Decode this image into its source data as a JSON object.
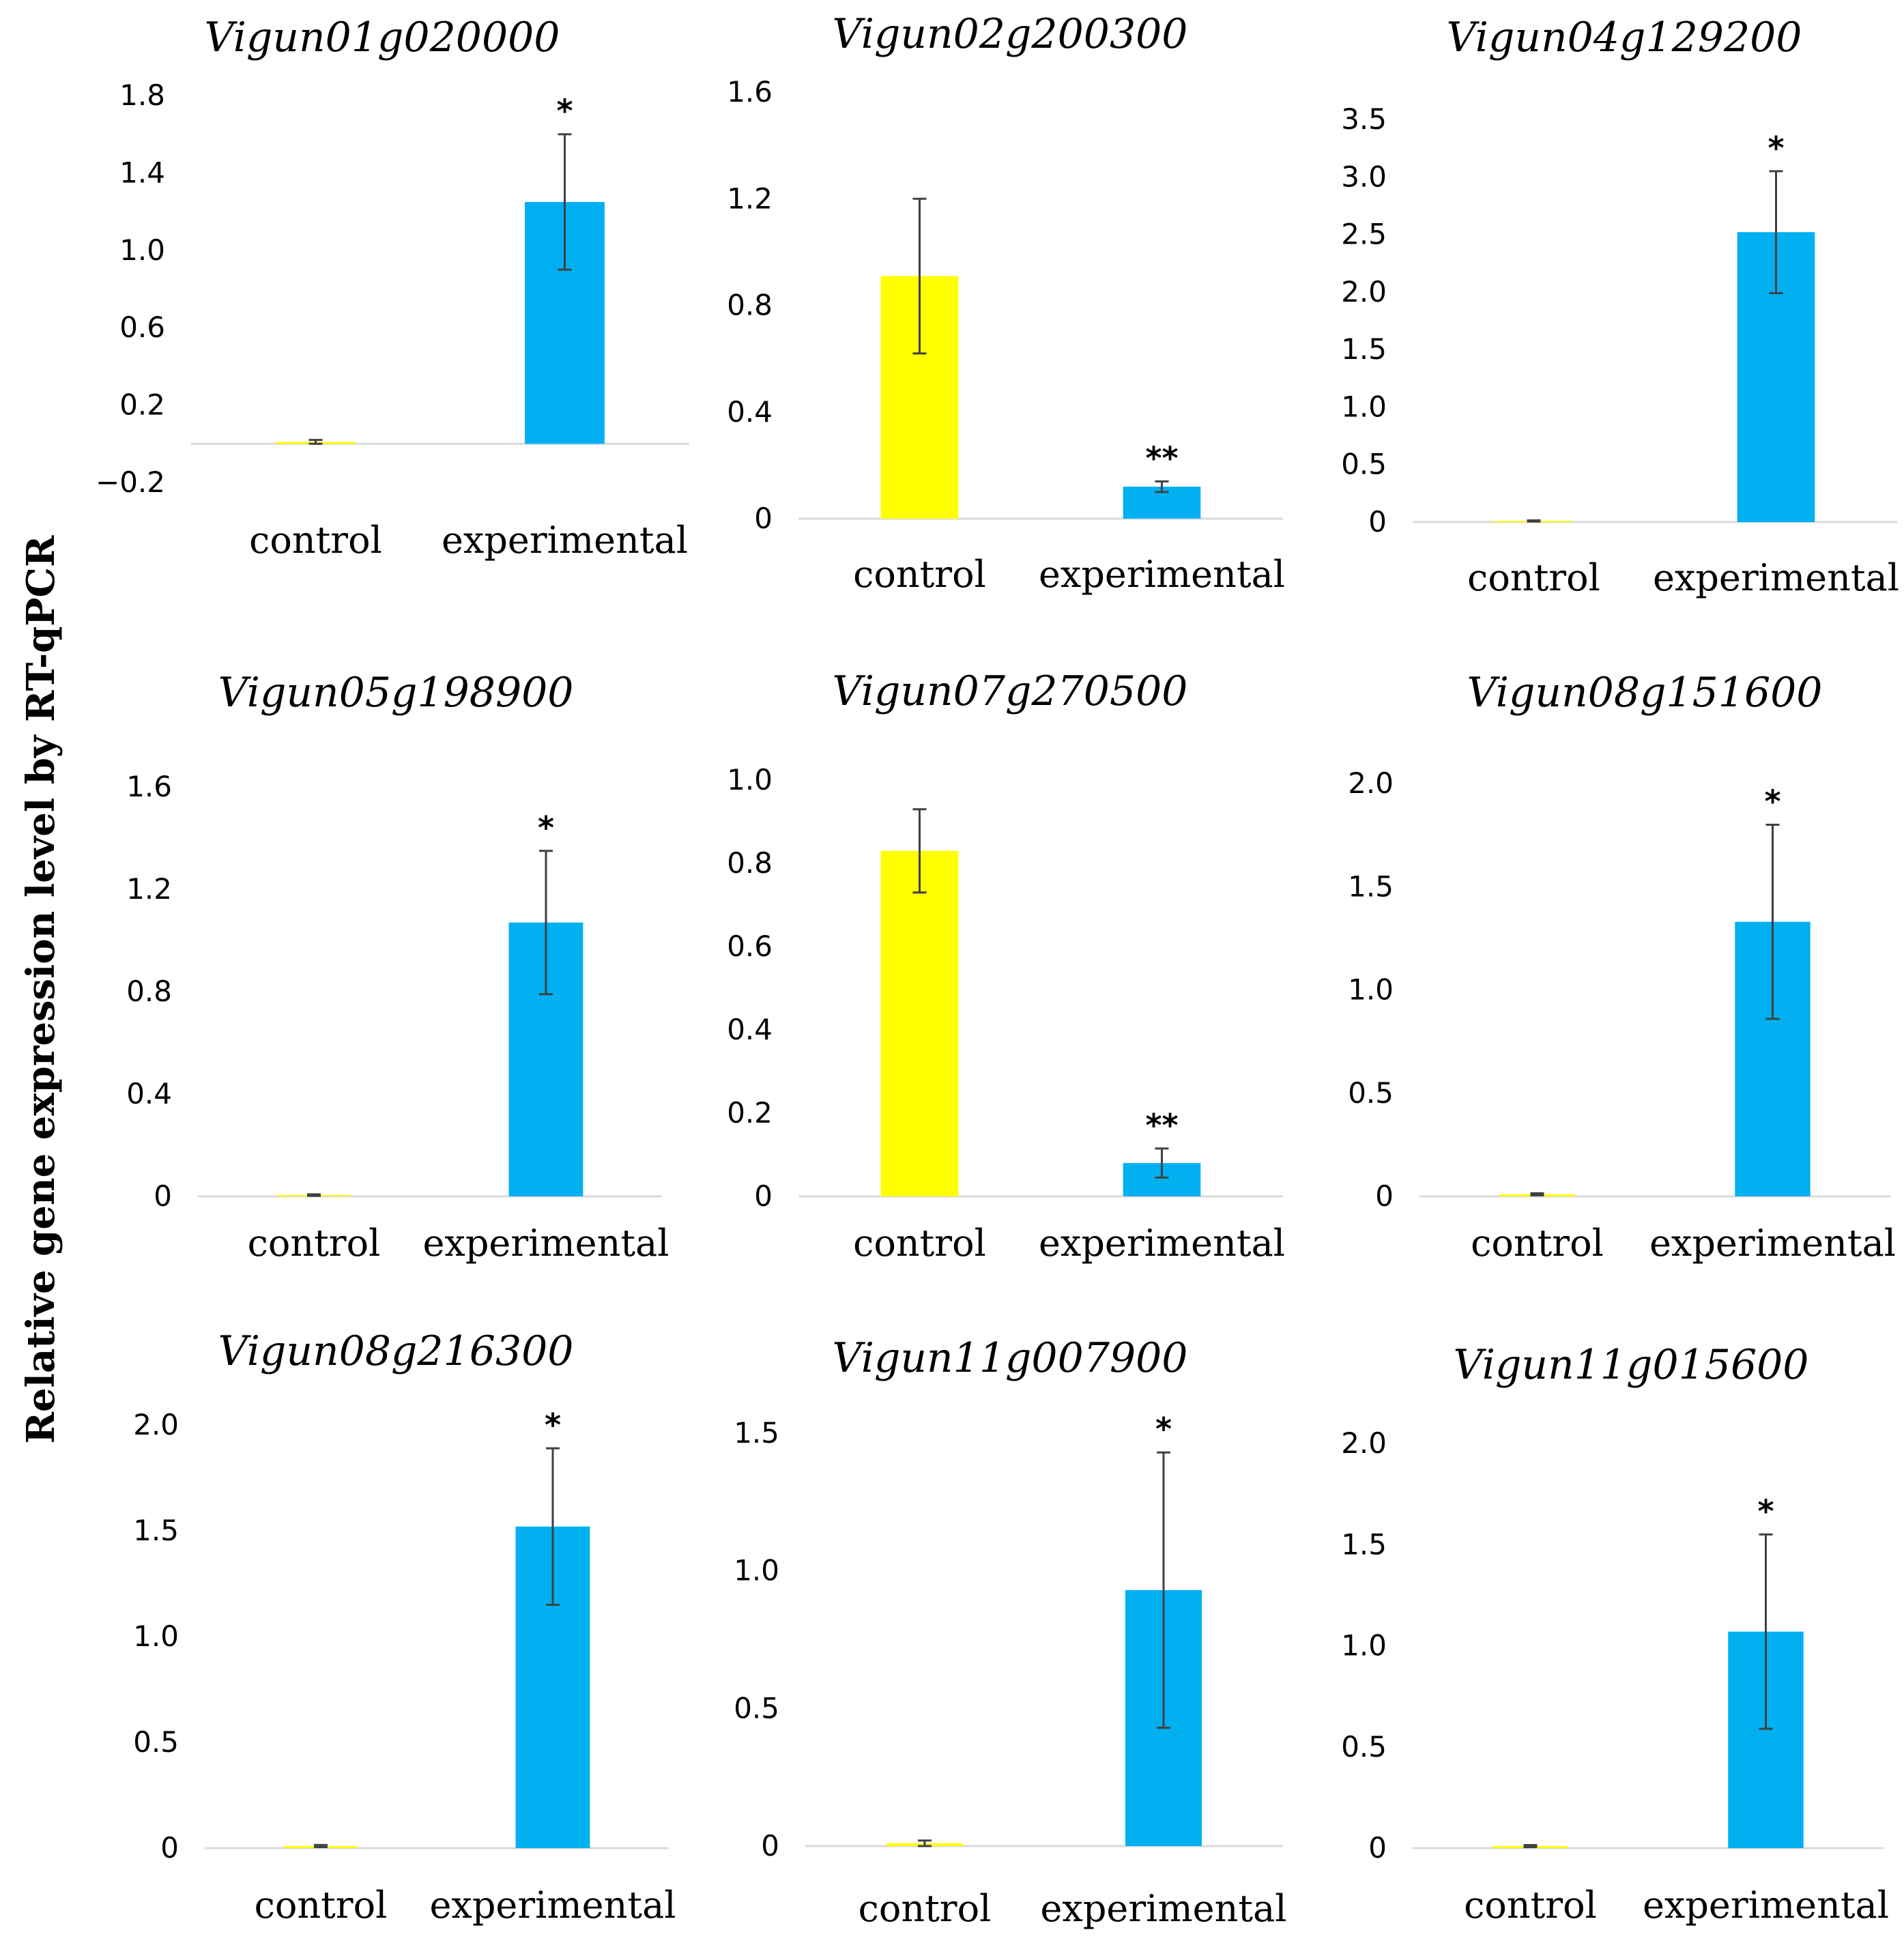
{
  "figure": {
    "ylabel": "Relative gene expression level by RT-qPCR",
    "colors": {
      "control": "#ffff00",
      "experimental": "#00b0f0",
      "axis": "#d9d9d9",
      "error": "#404040"
    }
  },
  "chart_data": [
    {
      "type": "bar",
      "title": "Vigun01g020000",
      "categories": [
        "control",
        "experimental"
      ],
      "values": [
        0.01,
        1.25
      ],
      "errors": [
        0.01,
        0.35
      ],
      "significance": [
        "",
        "*"
      ],
      "ylim": [
        -0.2,
        1.8
      ],
      "ytick_values": [
        -0.2,
        0.2,
        0.6,
        1.0,
        1.4,
        1.8
      ],
      "ytick_labels": [
        "−0.2",
        "0.2",
        "0.6",
        "1.0",
        "1.4",
        "1.8"
      ]
    },
    {
      "type": "bar",
      "title": "Vigun02g200300",
      "categories": [
        "control",
        "experimental"
      ],
      "values": [
        0.91,
        0.12
      ],
      "errors": [
        0.29,
        0.02
      ],
      "significance": [
        "",
        "**"
      ],
      "ylim": [
        0,
        1.6
      ],
      "ytick_values": [
        0,
        0.4,
        0.8,
        1.2,
        1.6
      ],
      "ytick_labels": [
        "0",
        "0.4",
        "0.8",
        "1.2",
        "1.6"
      ]
    },
    {
      "type": "bar",
      "title": "Vigun04g129200",
      "categories": [
        "control",
        "experimental"
      ],
      "values": [
        0.01,
        2.52
      ],
      "errors": [
        0.005,
        0.53
      ],
      "significance": [
        "",
        "*"
      ],
      "ylim": [
        0,
        3.5
      ],
      "ytick_values": [
        0,
        0.5,
        1.0,
        1.5,
        2.0,
        2.5,
        3.0,
        3.5
      ],
      "ytick_labels": [
        "0",
        "0.5",
        "1.0",
        "1.5",
        "2.0",
        "2.5",
        "3.0",
        "3.5"
      ]
    },
    {
      "type": "bar",
      "title": "Vigun05g198900",
      "categories": [
        "control",
        "experimental"
      ],
      "values": [
        0.005,
        1.07
      ],
      "errors": [
        0.003,
        0.28
      ],
      "significance": [
        "",
        "*"
      ],
      "ylim": [
        0,
        1.6
      ],
      "ytick_values": [
        0,
        0.4,
        0.8,
        1.2,
        1.6
      ],
      "ytick_labels": [
        "0",
        "0.4",
        "0.8",
        "1.2",
        "1.6"
      ]
    },
    {
      "type": "bar",
      "title": "Vigun07g270500",
      "categories": [
        "control",
        "experimental"
      ],
      "values": [
        0.83,
        0.08
      ],
      "errors": [
        0.1,
        0.035
      ],
      "significance": [
        "",
        "**"
      ],
      "ylim": [
        0,
        1.0
      ],
      "ytick_values": [
        0,
        0.2,
        0.4,
        0.6,
        0.8,
        1.0
      ],
      "ytick_labels": [
        "0",
        "0.2",
        "0.4",
        "0.6",
        "0.8",
        "1.0"
      ]
    },
    {
      "type": "bar",
      "title": "Vigun08g151600",
      "categories": [
        "control",
        "experimental"
      ],
      "values": [
        0.01,
        1.33
      ],
      "errors": [
        0.005,
        0.47
      ],
      "significance": [
        "",
        "*"
      ],
      "ylim": [
        0,
        2.0
      ],
      "ytick_values": [
        0,
        0.5,
        1.0,
        1.5,
        2.0
      ],
      "ytick_labels": [
        "0",
        "0.5",
        "1.0",
        "1.5",
        "2.0"
      ]
    },
    {
      "type": "bar",
      "title": "Vigun08g216300",
      "categories": [
        "control",
        "experimental"
      ],
      "values": [
        0.01,
        1.52
      ],
      "errors": [
        0.005,
        0.37
      ],
      "significance": [
        "",
        "*"
      ],
      "ylim": [
        0,
        2.0
      ],
      "ytick_values": [
        0,
        0.5,
        1.0,
        1.5,
        2.0
      ],
      "ytick_labels": [
        "0",
        "0.5",
        "1.0",
        "1.5",
        "2.0"
      ]
    },
    {
      "type": "bar",
      "title": "Vigun11g007900",
      "categories": [
        "control",
        "experimental"
      ],
      "values": [
        0.01,
        0.93
      ],
      "errors": [
        0.01,
        0.5
      ],
      "significance": [
        "",
        "*"
      ],
      "ylim": [
        0,
        1.5
      ],
      "ytick_values": [
        0,
        0.5,
        1.0,
        1.5
      ],
      "ytick_labels": [
        "0",
        "0.5",
        "1.0",
        "1.5"
      ]
    },
    {
      "type": "bar",
      "title": "Vigun11g015600",
      "categories": [
        "control",
        "experimental"
      ],
      "values": [
        0.01,
        1.07
      ],
      "errors": [
        0.005,
        0.48
      ],
      "significance": [
        "",
        "*"
      ],
      "ylim": [
        0,
        2.0
      ],
      "ytick_values": [
        0,
        0.5,
        1.0,
        1.5,
        2.0
      ],
      "ytick_labels": [
        "0",
        "0.5",
        "1.0",
        "1.5",
        "2.0"
      ]
    }
  ]
}
